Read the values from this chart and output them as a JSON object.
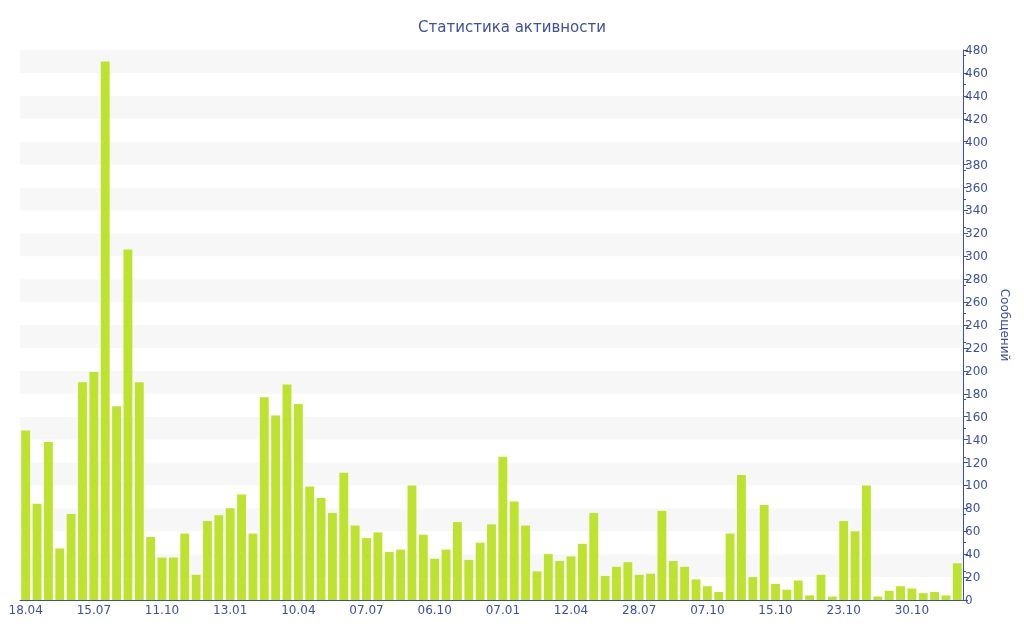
{
  "chart_data": {
    "type": "bar",
    "title": "Статистика активности",
    "ylabel": "Сообщений",
    "categories": [
      "18.04",
      null,
      null,
      null,
      null,
      null,
      "15.07",
      null,
      null,
      null,
      null,
      null,
      "11.10",
      null,
      null,
      null,
      null,
      null,
      "13.01",
      null,
      null,
      null,
      null,
      null,
      "10.04",
      null,
      null,
      null,
      null,
      null,
      "07.07",
      null,
      null,
      null,
      null,
      null,
      "06.10",
      null,
      null,
      null,
      null,
      null,
      "07.01",
      null,
      null,
      null,
      null,
      null,
      "12.04",
      null,
      null,
      null,
      null,
      null,
      "28.07",
      null,
      null,
      null,
      null,
      null,
      "07.10",
      null,
      null,
      null,
      null,
      null,
      "15.10",
      null,
      null,
      null,
      null,
      null,
      "23.10",
      null,
      null,
      null,
      null,
      null,
      "30.10",
      null,
      null,
      null,
      null
    ],
    "values": [
      148,
      84,
      138,
      45,
      75,
      190,
      199,
      470,
      169,
      306,
      190,
      55,
      37,
      37,
      58,
      22,
      69,
      74,
      80,
      92,
      58,
      177,
      161,
      188,
      171,
      99,
      89,
      76,
      111,
      65,
      54,
      59,
      42,
      44,
      100,
      57,
      36,
      44,
      68,
      35,
      50,
      66,
      125,
      86,
      65,
      25,
      40,
      34,
      38,
      49,
      76,
      21,
      29,
      33,
      22,
      23,
      78,
      34,
      29,
      18,
      12,
      7,
      58,
      109,
      20,
      83,
      14,
      9,
      17,
      4,
      22,
      3,
      69,
      60,
      100,
      3,
      8,
      12,
      10,
      6,
      7,
      4,
      32
    ],
    "color": "#bde22f",
    "ylim": [
      0,
      480
    ],
    "yticks": [
      0,
      20,
      40,
      60,
      80,
      100,
      120,
      140,
      160,
      180,
      200,
      220,
      240,
      260,
      280,
      300,
      320,
      340,
      360,
      380,
      400,
      420,
      440,
      460,
      480
    ],
    "grid": false
  }
}
